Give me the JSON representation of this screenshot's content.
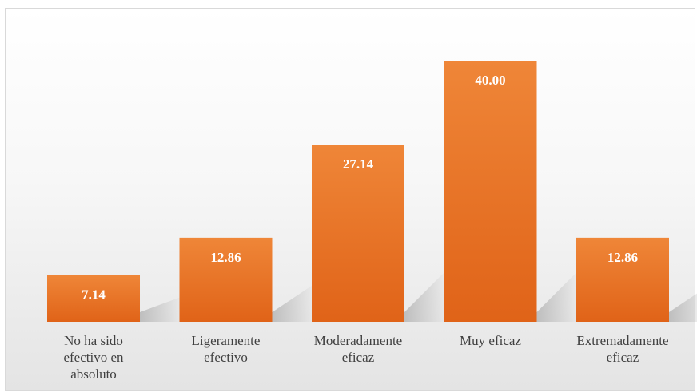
{
  "chart_data": {
    "type": "bar",
    "categories": [
      [
        "No ha sido",
        "efectivo en",
        "absoluto"
      ],
      [
        "Ligeramente",
        "efectivo"
      ],
      [
        "Moderadamente",
        "eficaz"
      ],
      [
        "Muy eficaz"
      ],
      [
        "Extremadamente",
        "eficaz"
      ]
    ],
    "values": [
      7.14,
      12.86,
      27.14,
      40.0,
      12.86
    ],
    "value_labels": [
      "7.14",
      "12.86",
      "27.14",
      "40.00",
      "12.86"
    ],
    "title": "",
    "xlabel": "",
    "ylabel": "",
    "ylim": [
      0,
      40
    ],
    "grid": false,
    "legend": "none",
    "colors": {
      "bar_top": "#ef8638",
      "bar_bottom": "#e06318",
      "shadow": "#9a9a9a"
    }
  }
}
